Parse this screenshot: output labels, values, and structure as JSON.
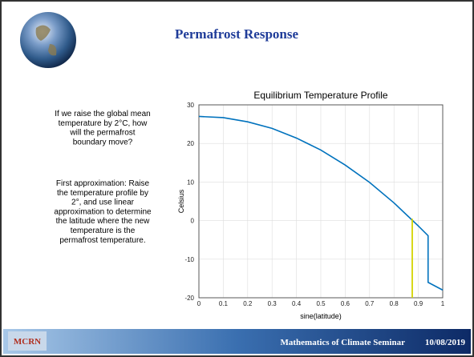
{
  "slide_title": "Permafrost Response",
  "text_blocks": [
    [
      "If we raise the global mean",
      "temperature by 2°C, how",
      "will the permafrost",
      "boundary move?"
    ],
    [
      "First approximation:  Raise",
      "the temperature profile by",
      "2°, and use linear",
      "approximation to determine",
      "the latitude where the new",
      "temperature is the",
      "permafrost temperature."
    ]
  ],
  "footer": {
    "logo": "MCRN",
    "text": "Mathematics of Climate Seminar",
    "date": "10/08/2019"
  },
  "chart_data": {
    "type": "line",
    "title": "Equilibrium Temperature Profile",
    "x_label": "sine(latitude)",
    "y_label": "Celsius",
    "xlim": [
      0,
      1
    ],
    "xticks": [
      0,
      0.1,
      0.2,
      0.3,
      0.4,
      0.5,
      0.6,
      0.7,
      0.8,
      0.9,
      1
    ],
    "ylim": [
      -20,
      30
    ],
    "yticks": [
      -20,
      -10,
      0,
      10,
      20,
      30
    ],
    "grid": true,
    "series": [
      {
        "color": "#0072bd",
        "x": [
          0,
          0.1,
          0.2,
          0.3,
          0.4,
          0.5,
          0.6,
          0.7,
          0.8,
          0.9,
          0.94,
          0.94,
          1
        ],
        "values": [
          27,
          26.7,
          25.6,
          23.9,
          21.4,
          18.3,
          14.4,
          9.9,
          4.6,
          -1.4,
          -3.9,
          -16,
          -18
        ]
      },
      {
        "color": "#d4d400",
        "x": [
          0.875,
          0.875
        ],
        "values": [
          -20,
          0.5
        ]
      }
    ]
  }
}
